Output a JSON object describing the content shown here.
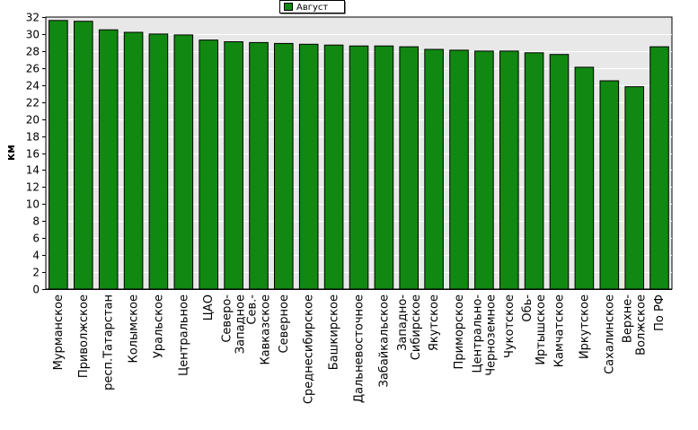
{
  "chart_data": {
    "type": "bar",
    "ylabel": "км",
    "ylim": [
      0,
      32
    ],
    "ytick_step": 2,
    "grid": true,
    "legend_position": "top-center",
    "bar_color": "#118811",
    "plot_background": "#e8e8e8",
    "categories": [
      [
        "Мурманское"
      ],
      [
        "Приволжское"
      ],
      [
        "респ.Татарстан"
      ],
      [
        "Колымское"
      ],
      [
        "Уральское"
      ],
      [
        "Центральное"
      ],
      [
        "ЦАО"
      ],
      [
        "Северо-",
        "Западное"
      ],
      [
        "Сев.-",
        "Кавказское"
      ],
      [
        "Северное"
      ],
      [
        "Среднесибирское"
      ],
      [
        "Башкирское"
      ],
      [
        "Дальневосточное"
      ],
      [
        "Забайкальское"
      ],
      [
        "Западно-",
        "Сибирское"
      ],
      [
        "Якутское"
      ],
      [
        "Приморское"
      ],
      [
        "Центрально-",
        "Черноземное"
      ],
      [
        "Чукотское"
      ],
      [
        "Обь-",
        "Иртышское"
      ],
      [
        "Камчатское"
      ],
      [
        "Иркутское"
      ],
      [
        "Сахалинское"
      ],
      [
        "Верхне-",
        "Волжское"
      ],
      [
        "По РФ"
      ]
    ],
    "series": [
      {
        "name": "Август",
        "values": [
          31.6,
          31.5,
          30.5,
          30.2,
          30.0,
          29.9,
          29.3,
          29.1,
          29.0,
          28.9,
          28.8,
          28.7,
          28.6,
          28.6,
          28.5,
          28.2,
          28.1,
          28.0,
          28.0,
          27.8,
          27.6,
          26.1,
          24.5,
          23.8,
          28.5
        ]
      }
    ]
  }
}
